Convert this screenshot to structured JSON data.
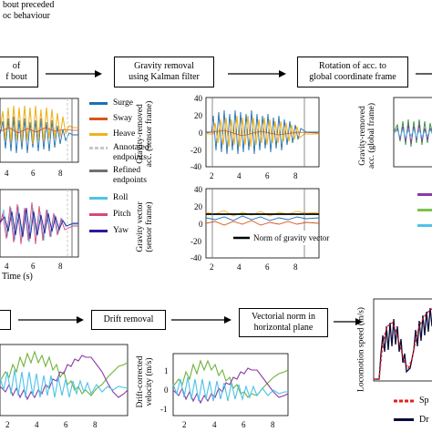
{
  "top_note": {
    "line1": "bout preceded",
    "line2": "oc behaviour"
  },
  "row1": {
    "box_left": {
      "line1": "of",
      "line2": "f bout"
    },
    "box_gravity": {
      "line1": "Gravity removal",
      "line2": "using Kalman filter"
    },
    "box_rotation": {
      "line1": "Rotation of acc. to",
      "line2": "global coordinate frame"
    }
  },
  "legend1": {
    "items": [
      {
        "label": "Surge",
        "color": "#1f6fb5"
      },
      {
        "label": "Sway",
        "color": "#d7551b"
      },
      {
        "label": "Heave",
        "color": "#efb21f"
      },
      {
        "label": "Annotated",
        "label2": "endpoints",
        "color": "#c8c8c8"
      },
      {
        "label": "Refined",
        "label2": "endpoints",
        "color": "#707070"
      }
    ]
  },
  "legend2": {
    "items": [
      {
        "label": "Roll",
        "color": "#4fc3e8"
      },
      {
        "label": "Pitch",
        "color": "#d6477e"
      },
      {
        "label": "Yaw",
        "color": "#2a1a9a"
      }
    ]
  },
  "plot_left_top": {
    "xticks": [
      "4",
      "6",
      "8"
    ]
  },
  "plot_left_bottom": {
    "xticks": [
      "4",
      "6",
      "8"
    ],
    "xlabel": "Time (s)"
  },
  "plot_mid_top": {
    "ylabel1": "Gravity-removed",
    "ylabel2": "acc. (sensor frame)",
    "yticks": [
      "40",
      "20",
      "0",
      "-20",
      "-40"
    ],
    "xticks": [
      "2",
      "4",
      "6",
      "8"
    ]
  },
  "plot_mid_bottom": {
    "ylabel1": "Gravity vector",
    "ylabel2": "(sensor frame)",
    "yticks": [
      "40",
      "20",
      "0",
      "-20",
      "-40"
    ],
    "xticks": [
      "2",
      "4",
      "6",
      "8"
    ],
    "legend": "Norm of gravity vector"
  },
  "plot_right_top": {
    "ylabel1": "Gravity-removed",
    "ylabel2": "acc. (global frame)"
  },
  "row2": {
    "box_drift": "Drift removal",
    "box_norm": {
      "line1": "Vectorial norm in",
      "line2": "horizontal plane"
    }
  },
  "plot_mid_lower": {
    "ylabel1": "Drift-corrected",
    "ylabel2": "velocity (m/s)",
    "yticks": [
      "1",
      "0",
      "-1"
    ],
    "xticks": [
      "2",
      "4",
      "6",
      "8"
    ]
  },
  "plot_left_lower": {
    "xticks": [
      "2",
      "4",
      "6",
      "8"
    ]
  },
  "plot_right_lower": {
    "ylabel": "Locomotion speed (m/s)",
    "legend": [
      {
        "label": "Sp",
        "color": "#e02020"
      },
      {
        "label": "Dr",
        "color": "#0a0a3a"
      }
    ]
  }
}
